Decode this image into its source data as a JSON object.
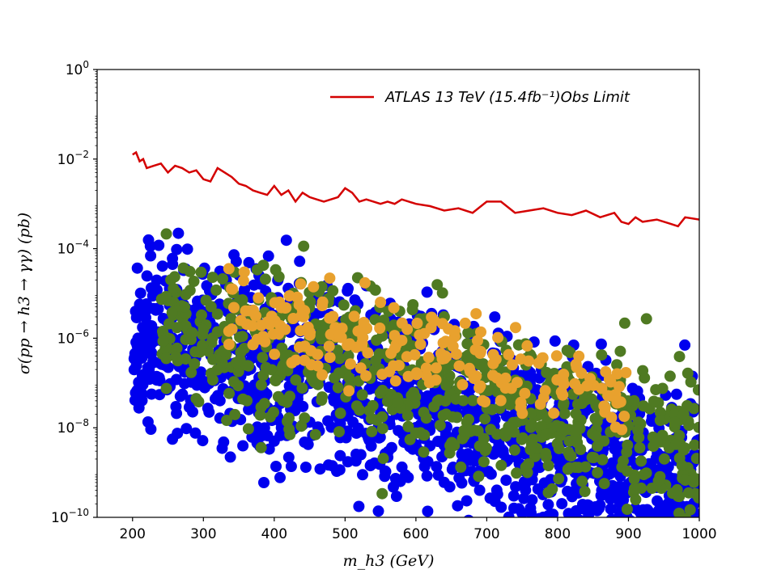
{
  "chart_data": {
    "type": "scatter",
    "title": "",
    "xlabel": "m_h3 (GeV)",
    "ylabel": "σ(pp → h3 → γγ) (pb)",
    "xlim": [
      150,
      1000
    ],
    "ylim_log10": [
      -10,
      0
    ],
    "yscale": "log",
    "x_ticks": [
      200,
      300,
      400,
      500,
      600,
      700,
      800,
      900,
      1000
    ],
    "y_ticks": [
      {
        "exp": 0,
        "label": "10",
        "sup": "0"
      },
      {
        "exp": -2,
        "label": "10",
        "sup": "−2"
      },
      {
        "exp": -4,
        "label": "10",
        "sup": "−4"
      },
      {
        "exp": -6,
        "label": "10",
        "sup": "−6"
      },
      {
        "exp": -8,
        "label": "10",
        "sup": "−8"
      },
      {
        "exp": -10,
        "label": "10",
        "sup": "−10"
      }
    ],
    "legend": {
      "placement": "top-right",
      "entries": [
        {
          "label": "ATLAS 13 TeV (15.4fb⁻¹)Obs Limit",
          "color": "#d40000"
        }
      ]
    },
    "limit_line": {
      "name": "ATLAS 13 TeV (15.4fb⁻¹)Obs Limit",
      "color": "#d40000",
      "x": [
        200,
        205,
        210,
        215,
        220,
        230,
        240,
        250,
        260,
        270,
        280,
        290,
        300,
        310,
        320,
        330,
        340,
        350,
        360,
        370,
        380,
        390,
        400,
        410,
        420,
        430,
        440,
        450,
        460,
        470,
        480,
        490,
        500,
        510,
        520,
        530,
        540,
        550,
        560,
        570,
        580,
        590,
        600,
        620,
        640,
        660,
        680,
        700,
        720,
        740,
        760,
        780,
        800,
        820,
        840,
        860,
        880,
        890,
        900,
        910,
        920,
        940,
        960,
        970,
        980,
        1000
      ],
      "log10y": [
        -1.9,
        -1.85,
        -2.05,
        -2.0,
        -2.2,
        -2.15,
        -2.1,
        -2.3,
        -2.15,
        -2.2,
        -2.3,
        -2.25,
        -2.45,
        -2.5,
        -2.2,
        -2.3,
        -2.4,
        -2.55,
        -2.6,
        -2.7,
        -2.75,
        -2.8,
        -2.6,
        -2.8,
        -2.7,
        -2.95,
        -2.75,
        -2.85,
        -2.9,
        -2.95,
        -2.9,
        -2.85,
        -2.65,
        -2.75,
        -2.95,
        -2.9,
        -2.95,
        -3.0,
        -2.95,
        -3.0,
        -2.9,
        -2.95,
        -3.0,
        -3.05,
        -3.15,
        -3.1,
        -3.2,
        -2.95,
        -2.95,
        -3.2,
        -3.15,
        -3.1,
        -3.2,
        -3.25,
        -3.15,
        -3.3,
        -3.2,
        -3.4,
        -3.45,
        -3.3,
        -3.4,
        -3.35,
        -3.45,
        -3.5,
        -3.3,
        -3.35
      ]
    },
    "series": [
      {
        "name": "blue points",
        "color": "#0000ee",
        "count": 1400,
        "x_range": [
          200,
          1000
        ],
        "log10y_center_at_200": -5.8,
        "log10y_slope_per_100": -0.42,
        "spread": 1.0
      },
      {
        "name": "green points",
        "color": "#4f7a22",
        "count": 700,
        "x_range": [
          240,
          1000
        ],
        "log10y_center_at_200": -5.5,
        "log10y_slope_per_100": -0.36,
        "spread": 0.85
      },
      {
        "name": "orange points",
        "color": "#e8a12e",
        "count": 220,
        "x_range": [
          330,
          900
        ],
        "log10y_center_at_200": -4.9,
        "log10y_slope_per_100": -0.34,
        "spread": 0.5
      }
    ]
  }
}
